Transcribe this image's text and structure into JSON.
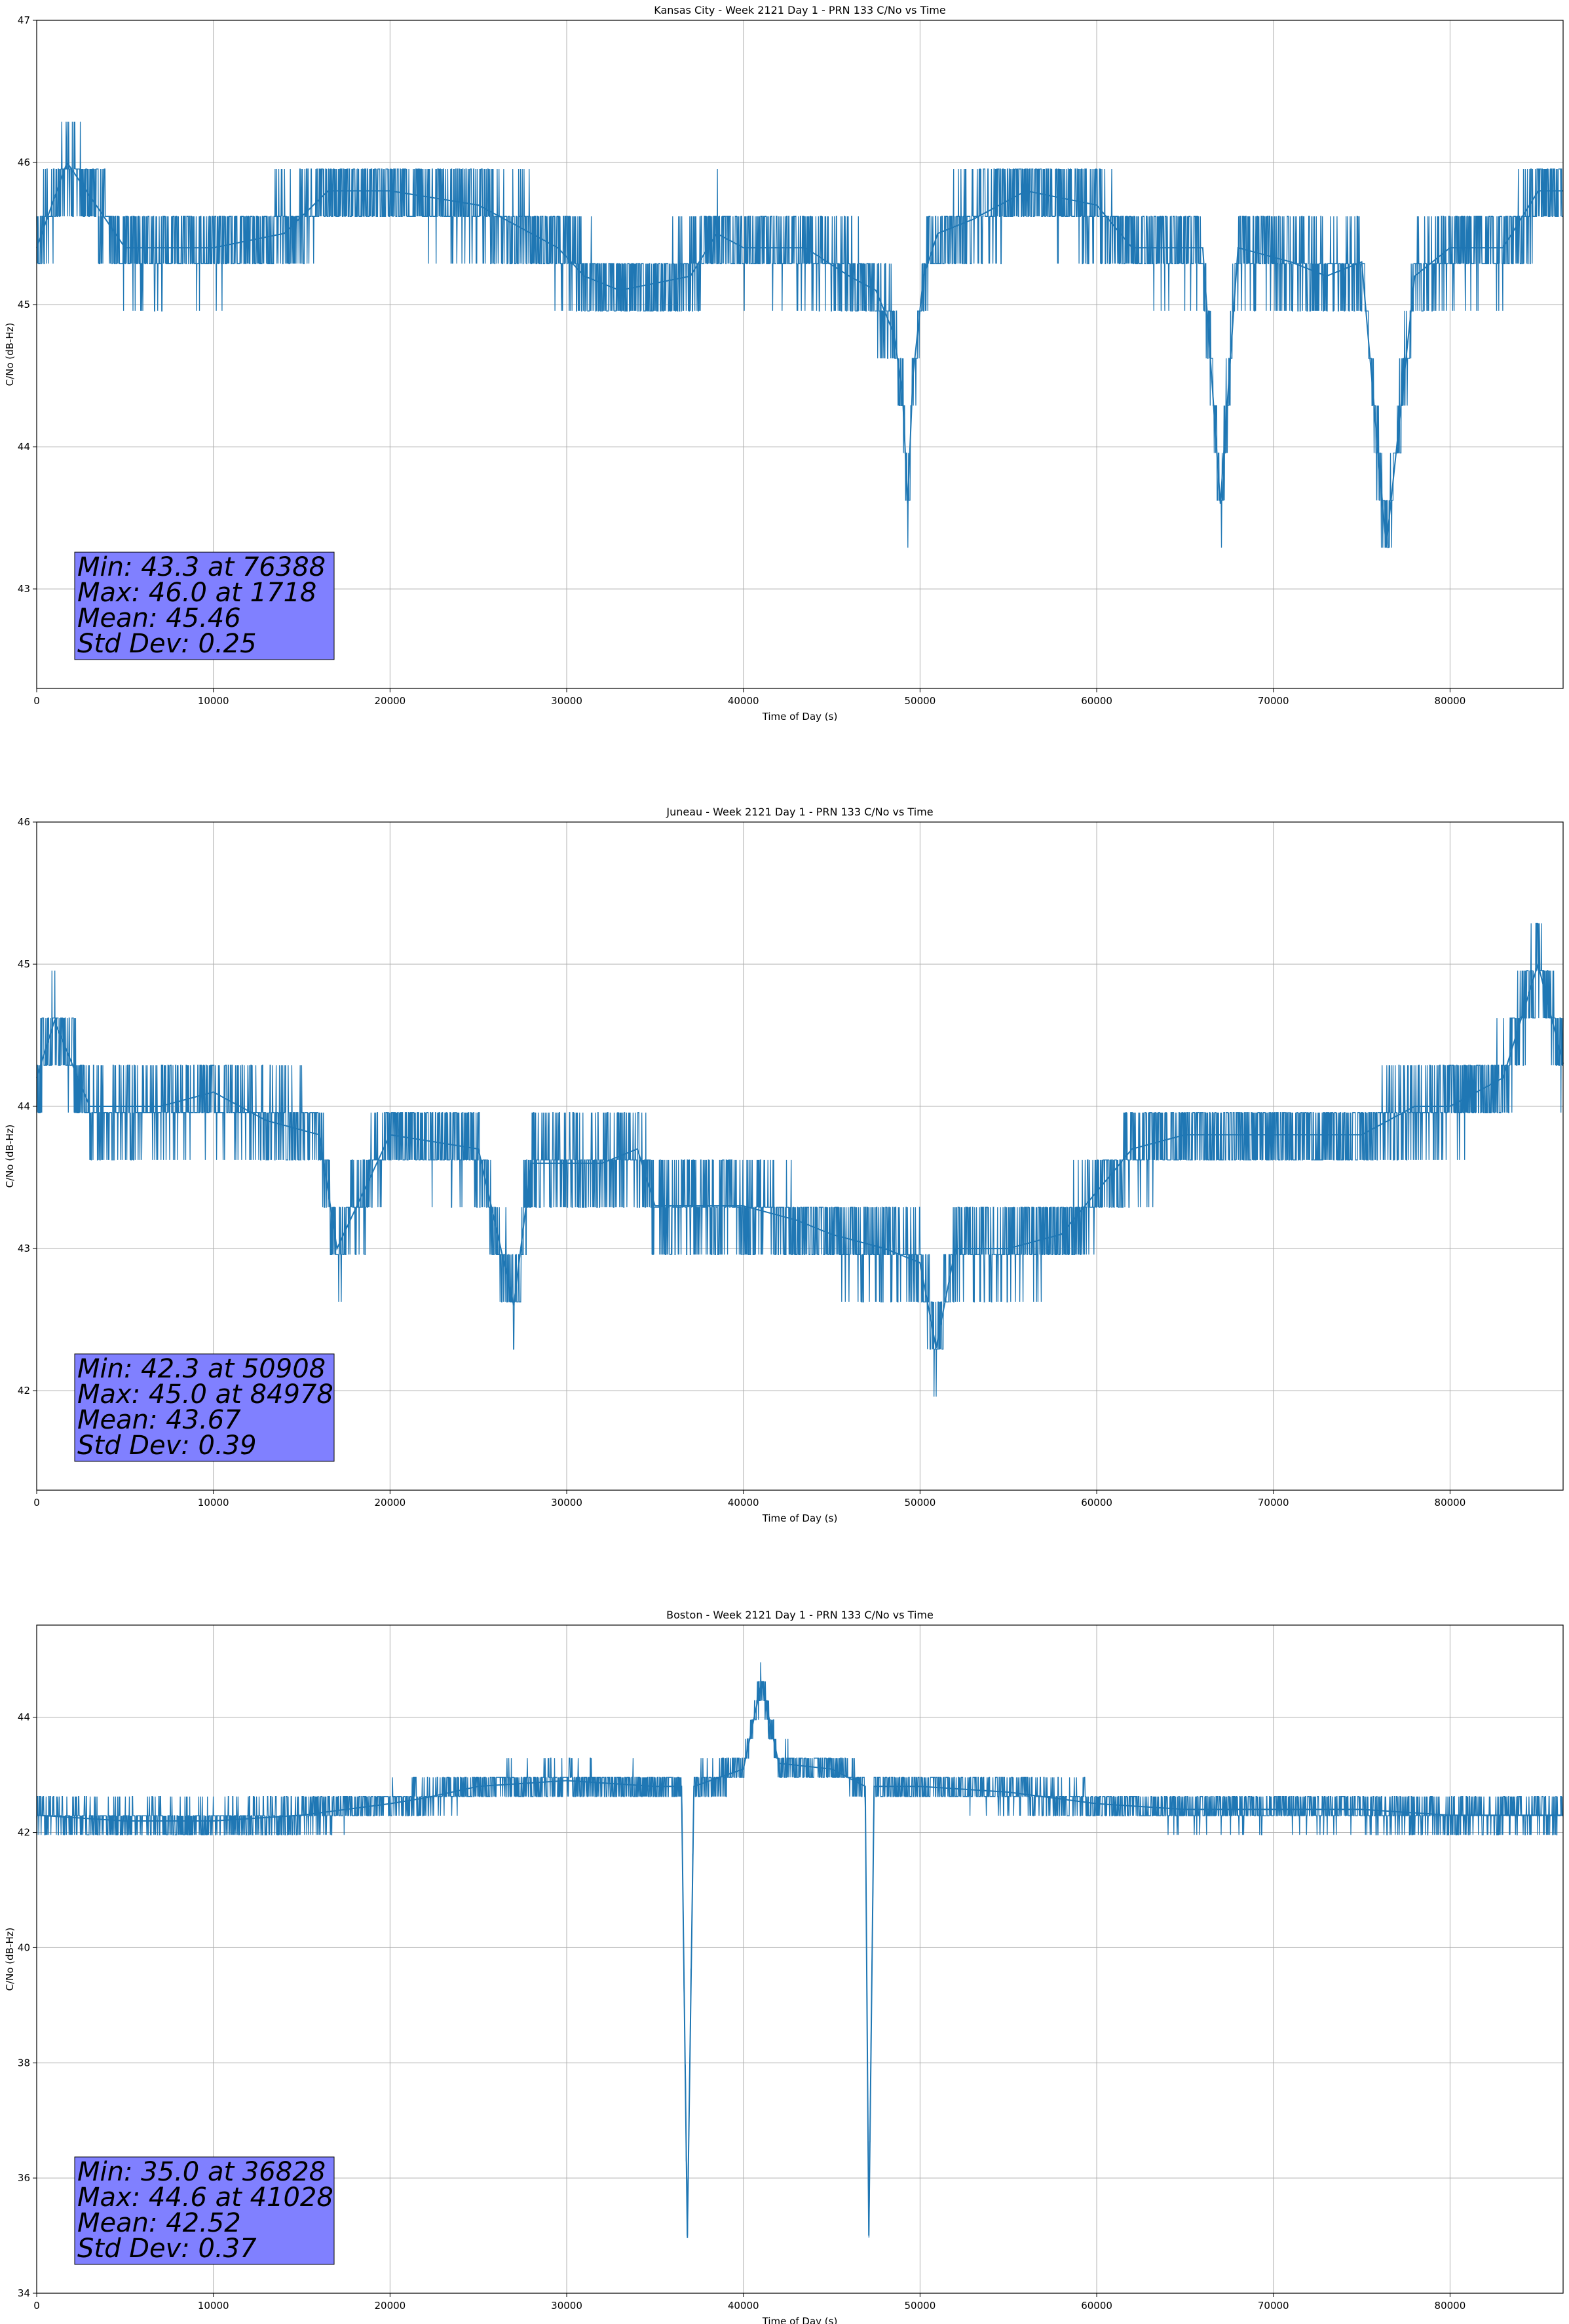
{
  "chart_data": [
    {
      "type": "line",
      "title": "Kansas City - Week 2121 Day 1 - PRN 133 C/No vs Time",
      "xlabel": "Time of Day (s)",
      "ylabel": "C/No (dB-Hz)",
      "xlim": [
        0,
        86400
      ],
      "ylim": [
        42.3,
        47.0
      ],
      "xticks": [
        0,
        10000,
        20000,
        30000,
        40000,
        50000,
        60000,
        70000,
        80000
      ],
      "yticks": [
        43,
        44,
        45,
        46,
        47
      ],
      "grid": true,
      "color": "#1f77b4",
      "stats": [
        "Min: 43.3 at 76388",
        "Max: 46.0 at 1718",
        "Mean: 45.46",
        "Std Dev: 0.25"
      ],
      "stats_box_color": "#8080ff",
      "stats_position": "bottom-left",
      "series": [
        {
          "x": [
            0,
            1718,
            5000,
            10000,
            14000,
            16500,
            20000,
            25000,
            29500,
            31000,
            33000,
            37000,
            38500,
            40000,
            43500,
            46000,
            47500,
            48500,
            49000,
            49300,
            49600,
            50200,
            51000,
            53000,
            56000,
            60000,
            62000,
            66000,
            67000,
            68000,
            71000,
            73000,
            75000,
            76388,
            78000,
            80000,
            83000,
            85000,
            86400
          ],
          "y": [
            45.4,
            46.0,
            45.4,
            45.4,
            45.5,
            45.8,
            45.8,
            45.7,
            45.4,
            45.2,
            45.1,
            45.2,
            45.5,
            45.4,
            45.4,
            45.2,
            45.1,
            44.8,
            44.4,
            43.6,
            44.5,
            45.2,
            45.5,
            45.6,
            45.8,
            45.7,
            45.4,
            45.4,
            43.6,
            45.4,
            45.3,
            45.2,
            45.3,
            43.3,
            45.2,
            45.4,
            45.4,
            45.8,
            45.8
          ]
        }
      ]
    },
    {
      "type": "line",
      "title": "Juneau - Week 2121 Day 1 - PRN 133 C/No vs Time",
      "xlabel": "Time of Day (s)",
      "ylabel": "C/No (dB-Hz)",
      "xlim": [
        0,
        86400
      ],
      "ylim": [
        41.3,
        46.0
      ],
      "xticks": [
        0,
        10000,
        20000,
        30000,
        40000,
        50000,
        60000,
        70000,
        80000
      ],
      "yticks": [
        42,
        43,
        44,
        45,
        46
      ],
      "grid": true,
      "color": "#1f77b4",
      "stats": [
        "Min: 42.3 at 50908",
        "Max: 45.0 at 84978",
        "Mean: 43.67",
        "Std Dev: 0.39"
      ],
      "stats_box_color": "#8080ff",
      "stats_position": "bottom-left",
      "series": [
        {
          "x": [
            0,
            1000,
            3000,
            7000,
            10000,
            13000,
            16000,
            17000,
            20000,
            25000,
            27000,
            28000,
            32000,
            34000,
            35000,
            40000,
            43000,
            45000,
            48000,
            50000,
            50908,
            52000,
            55000,
            58000,
            60000,
            62000,
            65000,
            70000,
            75000,
            78000,
            80000,
            83000,
            84978,
            86400
          ],
          "y": [
            44.2,
            44.6,
            44.0,
            44.0,
            44.1,
            43.9,
            43.8,
            43.0,
            43.8,
            43.7,
            42.6,
            43.6,
            43.6,
            43.7,
            43.3,
            43.3,
            43.2,
            43.1,
            43.0,
            42.9,
            42.3,
            43.0,
            43.0,
            43.1,
            43.4,
            43.7,
            43.8,
            43.8,
            43.8,
            44.0,
            44.0,
            44.2,
            45.0,
            44.3
          ]
        }
      ]
    },
    {
      "type": "line",
      "title": "Boston - Week 2121 Day 1 - PRN 133 C/No vs Time",
      "xlabel": "Time of Day (s)",
      "ylabel": "C/No (dB-Hz)",
      "xlim": [
        0,
        86400
      ],
      "ylim": [
        34.0,
        45.6
      ],
      "xticks": [
        0,
        10000,
        20000,
        30000,
        40000,
        50000,
        60000,
        70000,
        80000
      ],
      "yticks": [
        34,
        36,
        38,
        40,
        42,
        44
      ],
      "grid": true,
      "color": "#1f77b4",
      "stats": [
        "Min: 35.0 at 36828",
        "Max: 44.6 at 41028",
        "Mean: 42.52",
        "Std Dev: 0.37"
      ],
      "stats_box_color": "#8080ff",
      "stats_position": "bottom-left",
      "series": [
        {
          "x": [
            0,
            5000,
            10000,
            15000,
            20000,
            22000,
            25000,
            30000,
            35000,
            36500,
            36828,
            37200,
            40000,
            41028,
            42000,
            45000,
            46900,
            47100,
            47400,
            50000,
            55000,
            60000,
            65000,
            70000,
            75000,
            80000,
            86400
          ],
          "y": [
            42.3,
            42.2,
            42.2,
            42.3,
            42.5,
            42.6,
            42.8,
            42.9,
            42.8,
            42.8,
            35.0,
            42.8,
            43.1,
            44.6,
            43.2,
            43.1,
            42.8,
            35.0,
            42.8,
            42.8,
            42.7,
            42.5,
            42.4,
            42.4,
            42.4,
            42.3,
            42.3
          ]
        }
      ]
    }
  ]
}
